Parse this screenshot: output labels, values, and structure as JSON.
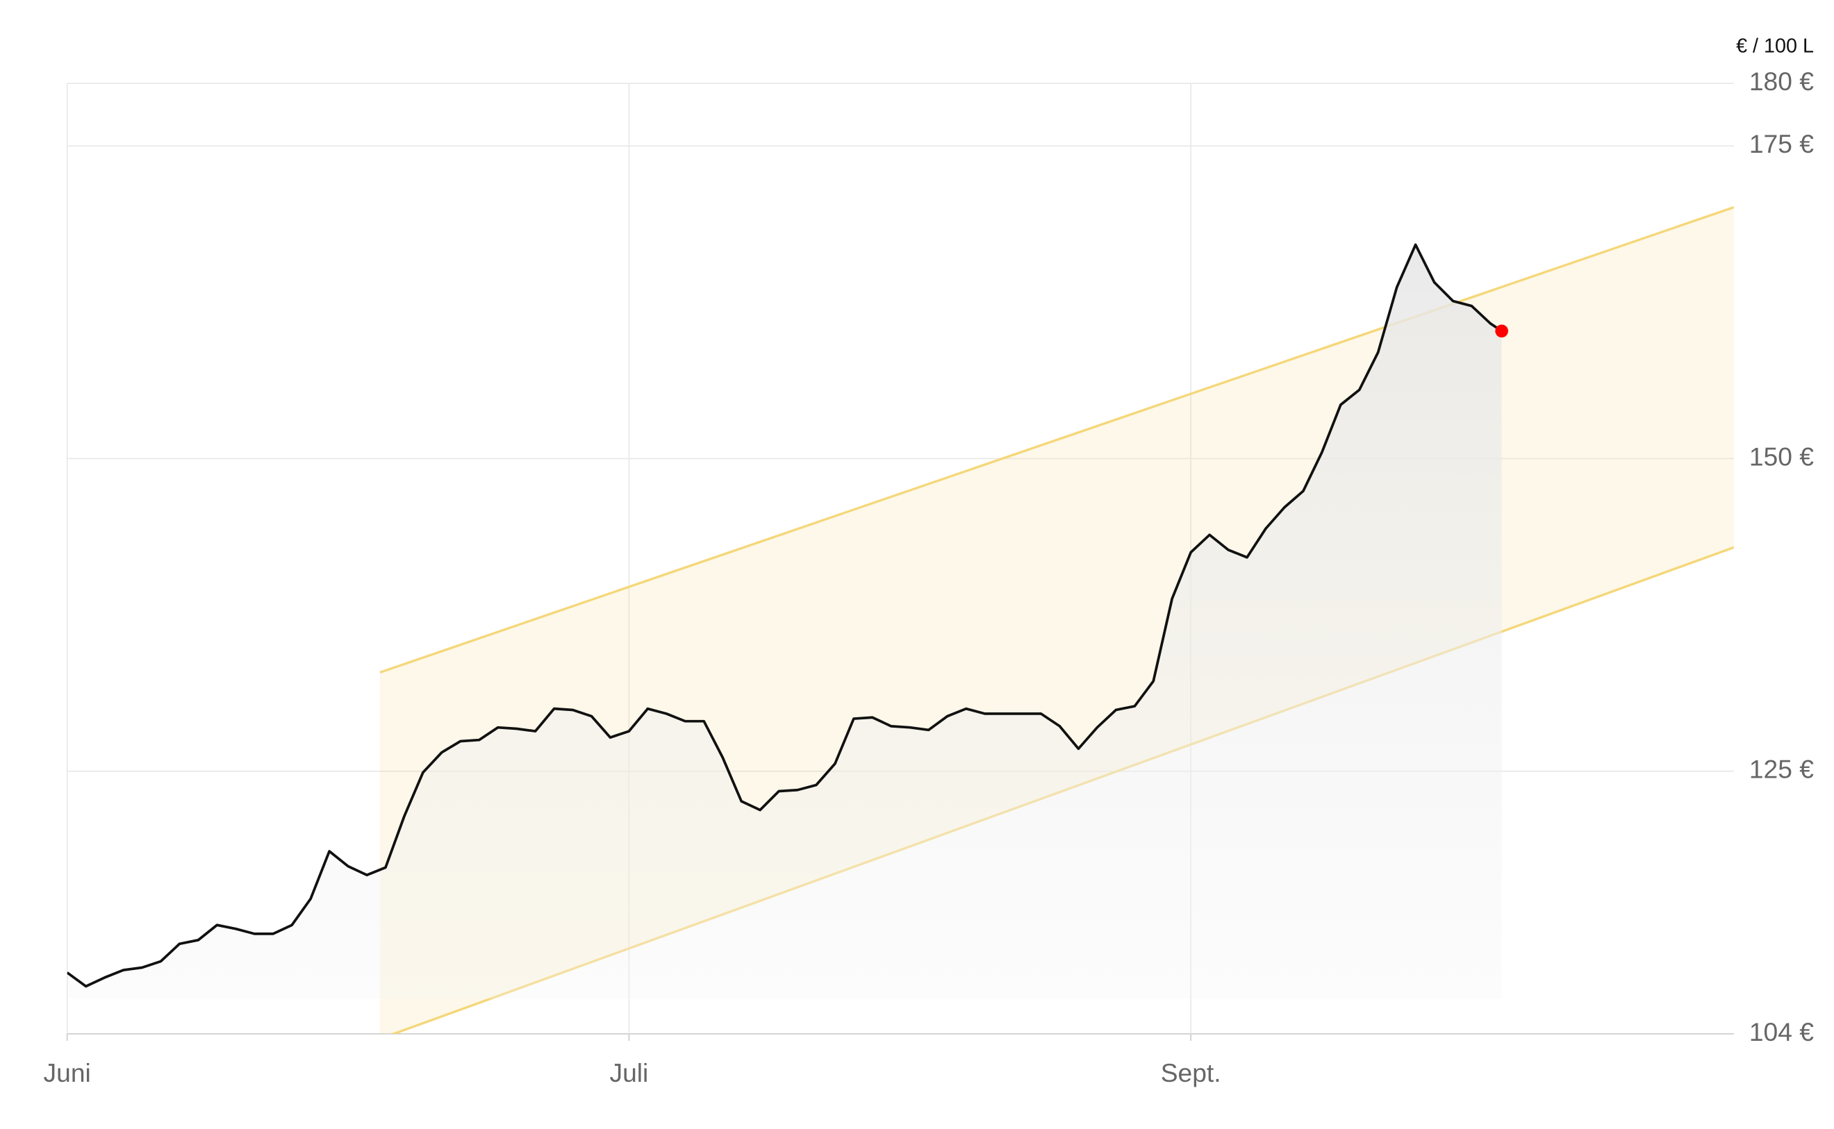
{
  "chart_data": {
    "type": "line",
    "y_unit_label": "€ / 100 L",
    "xlim": [
      0,
      89
    ],
    "ylim": [
      104,
      180
    ],
    "xticks": [
      {
        "value": 0,
        "label": "Juni"
      },
      {
        "value": 30,
        "label": "Juli"
      },
      {
        "value": 60,
        "label": "Sept."
      }
    ],
    "yticks": [
      {
        "value": 104,
        "label": "104 €"
      },
      {
        "value": 125,
        "label": "125 €"
      },
      {
        "value": 150,
        "label": "150 €"
      },
      {
        "value": 175,
        "label": "175 €"
      },
      {
        "value": 180,
        "label": "180 €"
      }
    ],
    "grid": true,
    "band": {
      "x": [
        16.7,
        89
      ],
      "upper": [
        132.9,
        170.1
      ],
      "lower": [
        103.6,
        142.9
      ],
      "color": "#f5d77a"
    },
    "series": [
      {
        "color": "#111111",
        "end_marker_color": "#ff0000",
        "x": [
          0,
          1,
          2,
          3,
          4,
          5,
          6,
          7,
          8,
          9,
          10,
          11,
          12,
          13,
          14,
          15,
          16,
          17,
          18,
          19,
          20,
          21,
          22,
          23,
          24,
          25,
          26,
          27,
          28,
          29,
          30,
          31,
          32,
          33,
          34,
          35,
          36,
          37,
          38,
          39,
          40,
          41,
          42,
          43,
          44,
          45,
          46,
          47,
          48,
          49,
          50,
          51,
          52,
          53,
          54,
          55,
          56,
          57,
          58,
          59,
          60,
          61,
          62,
          63,
          64,
          65,
          66,
          67,
          68,
          69,
          70,
          71,
          72,
          73,
          74,
          75,
          76,
          76.6
        ],
        "values": [
          108.9,
          107.8,
          108.5,
          109.1,
          109.3,
          109.8,
          111.2,
          111.5,
          112.7,
          112.4,
          112.0,
          112.0,
          112.7,
          114.8,
          118.6,
          117.4,
          116.7,
          117.3,
          121.4,
          124.9,
          126.5,
          127.4,
          127.5,
          128.5,
          128.4,
          128.2,
          130.0,
          129.9,
          129.4,
          127.7,
          128.2,
          130.0,
          129.6,
          129.0,
          129.0,
          126.1,
          122.6,
          121.9,
          123.4,
          123.5,
          123.9,
          125.6,
          129.2,
          129.3,
          128.6,
          128.5,
          128.3,
          129.4,
          130.0,
          129.6,
          129.6,
          129.6,
          129.6,
          128.6,
          126.8,
          128.5,
          129.9,
          130.2,
          132.2,
          138.8,
          142.5,
          143.9,
          142.7,
          142.1,
          144.4,
          146.1,
          147.4,
          150.5,
          154.3,
          155.5,
          158.5,
          163.7,
          167.1,
          164.1,
          162.6,
          162.2,
          160.8,
          160.2
        ]
      }
    ]
  }
}
